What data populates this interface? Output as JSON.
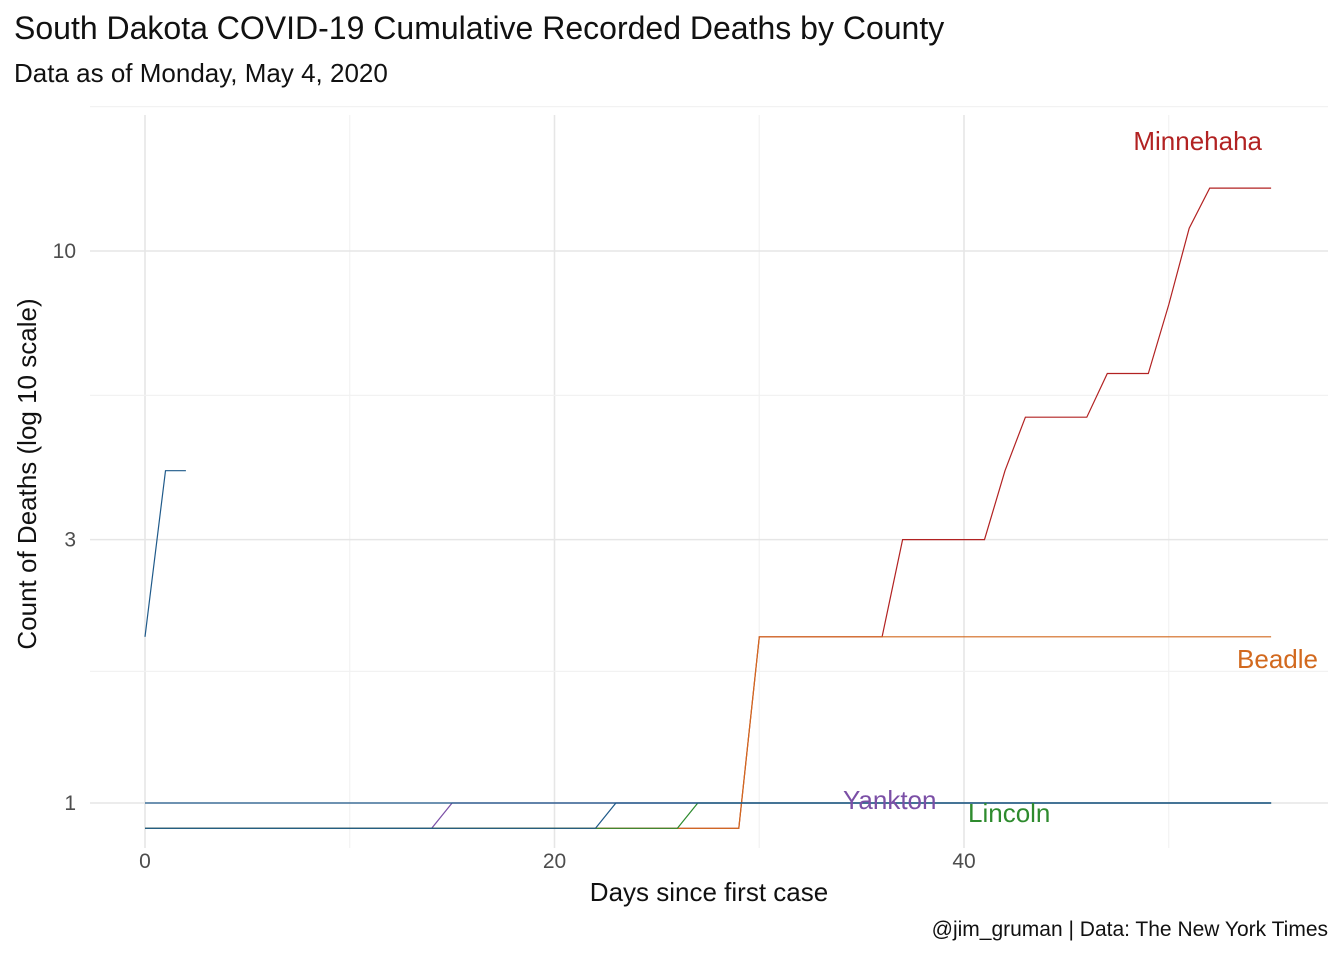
{
  "chart_data": {
    "type": "line",
    "title": "South Dakota COVID-19 Cumulative Recorded Deaths by County",
    "subtitle": "Data as of Monday, May  4, 2020",
    "caption": "@jim_gruman | Data: The New York Times",
    "xlabel": "Days since first case",
    "ylabel": "Count of Deaths (log 10 scale)",
    "y_scale": "log10",
    "xlim": [
      -2.5,
      55
    ],
    "ylim": [
      0.78,
      13.8
    ],
    "x_ticks": [
      0,
      20,
      40
    ],
    "y_ticks": [
      1,
      3,
      10
    ],
    "legend": "none (direct labels)",
    "grid": true,
    "series": [
      {
        "name": "Minnehaha",
        "color": "#b22222",
        "x": [
          0,
          29,
          30,
          36,
          37,
          41,
          42,
          43,
          46,
          47,
          49,
          50,
          51,
          52,
          55
        ],
        "y": [
          0.9,
          0.9,
          2,
          2,
          3,
          3,
          4,
          5,
          5,
          6,
          6,
          8,
          11,
          13,
          13
        ]
      },
      {
        "name": "Beadle",
        "color": "#d2691e",
        "x": [
          0,
          29,
          30,
          55
        ],
        "y": [
          0.9,
          0.9,
          2,
          2
        ]
      },
      {
        "name": "Yankton",
        "color": "#7b4fa6",
        "x": [
          0,
          14,
          15,
          55
        ],
        "y": [
          0.9,
          0.9,
          1,
          1
        ]
      },
      {
        "name": "Lincoln",
        "color": "#2e8b2e",
        "x": [
          0,
          26,
          27,
          55
        ],
        "y": [
          0.9,
          0.9,
          1,
          1
        ]
      },
      {
        "name": "",
        "color": "#1f5a8a",
        "x": [
          0,
          1,
          2
        ],
        "y": [
          2,
          4,
          4
        ]
      },
      {
        "name": "",
        "color": "#1f5a8a",
        "x": [
          0,
          55
        ],
        "y": [
          1,
          1
        ]
      },
      {
        "name": "",
        "color": "#1f5a8a",
        "x": [
          0,
          22,
          23,
          55
        ],
        "y": [
          0.9,
          0.9,
          1,
          1
        ]
      }
    ]
  }
}
